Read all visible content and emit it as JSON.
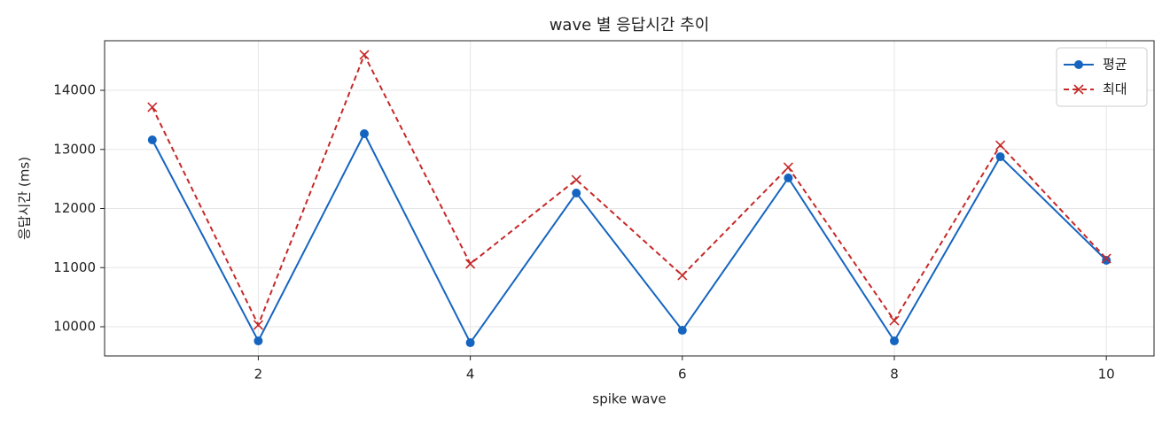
{
  "chart_data": {
    "type": "line",
    "title": "wave 별 응답시간 추이",
    "x_label": "spike wave",
    "y_label": "응답시간 (ms)",
    "x": [
      1,
      2,
      3,
      4,
      5,
      6,
      7,
      8,
      9,
      10
    ],
    "series": [
      {
        "name": "평균",
        "color": "#1565c0",
        "marker": "circle",
        "dash": false,
        "values": [
          13161,
          9760,
          13266,
          9730,
          12262,
          9940,
          12517,
          9760,
          12876,
          11124
        ]
      },
      {
        "name": "최대",
        "color": "#c62828",
        "marker": "x",
        "dash": true,
        "values": [
          13715,
          10030,
          14600,
          11064,
          12487,
          10869,
          12697,
          10105,
          13071,
          11154
        ]
      }
    ],
    "xlim": [
      0.55,
      10.45
    ],
    "xticks": [
      2,
      4,
      6,
      8,
      10
    ],
    "ylim": [
      9506,
      14839
    ],
    "yticks": [
      10000,
      11000,
      12000,
      13000,
      14000
    ],
    "grid": true,
    "legend": "upper right"
  }
}
